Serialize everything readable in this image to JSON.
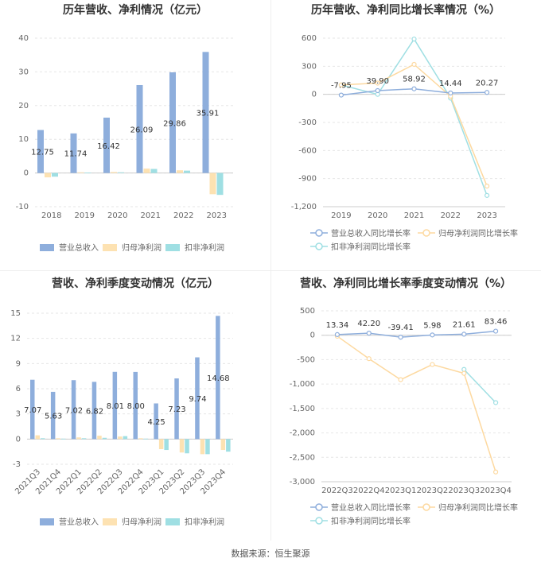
{
  "colors": {
    "revenue": "#8eaedc",
    "net_profit": "#fde2b2",
    "deducted_profit": "#9fdfe3",
    "axis": "#cccccc",
    "grid": "#e6e6e6"
  },
  "chart_data": [
    {
      "type": "bar",
      "title": "历年营收、净利情况（亿元）",
      "categories": [
        "2018",
        "2019",
        "2020",
        "2021",
        "2022",
        "2023"
      ],
      "ylim": [
        -10,
        40
      ],
      "yticks": [
        -10,
        0,
        10,
        20,
        30,
        40
      ],
      "series": [
        {
          "name": "营业总收入",
          "values": [
            12.75,
            11.74,
            16.42,
            26.09,
            29.86,
            35.91
          ],
          "labels": [
            "12.75",
            "11.74",
            "16.42",
            "26.09",
            "29.86",
            "35.91"
          ]
        },
        {
          "name": "归母净利润",
          "values": [
            -1.3,
            0.2,
            0.3,
            1.3,
            0.8,
            -6.3
          ]
        },
        {
          "name": "扣非净利润",
          "values": [
            -1.1,
            0.1,
            0.2,
            1.2,
            0.7,
            -6.5
          ]
        }
      ]
    },
    {
      "type": "line",
      "title": "历年营收、净利同比增长率情况（%）",
      "categories": [
        "2019",
        "2020",
        "2021",
        "2022",
        "2023"
      ],
      "ylim": [
        -1200,
        600
      ],
      "yticks": [
        -1200,
        -900,
        -600,
        -300,
        0,
        300,
        600
      ],
      "ytick_labels": [
        "-1,200",
        "-900",
        "-600",
        "-300",
        "0",
        "300",
        "600"
      ],
      "series": [
        {
          "name": "营业总收入同比增长率",
          "values": [
            -7.95,
            39.9,
            58.92,
            14.44,
            20.27
          ],
          "labels": [
            "-7.95",
            "39.90",
            "58.92",
            "14.44",
            "20.27"
          ]
        },
        {
          "name": "归母净利润同比增长率",
          "values": [
            100,
            120,
            320,
            -20,
            -980
          ]
        },
        {
          "name": "扣非净利润同比增长率",
          "values": [
            100,
            0,
            590,
            -40,
            -1080
          ]
        }
      ]
    },
    {
      "type": "bar",
      "title": "营收、净利季度变动情况（亿元）",
      "categories": [
        "2021Q3",
        "2021Q4",
        "2022Q1",
        "2022Q2",
        "2022Q3",
        "2022Q4",
        "2023Q1",
        "2023Q2",
        "2023Q3",
        "2023Q4"
      ],
      "ylim": [
        -3,
        15
      ],
      "yticks": [
        -3,
        0,
        3,
        6,
        9,
        12,
        15
      ],
      "series": [
        {
          "name": "营业总收入",
          "values": [
            7.07,
            5.63,
            7.02,
            6.82,
            8.01,
            8.0,
            4.25,
            7.23,
            9.74,
            14.68
          ],
          "labels": [
            "7.07",
            "5.63",
            "7.02",
            "6.82",
            "8.01",
            "8.00",
            "4.25",
            "7.23",
            "9.74",
            "14.68"
          ]
        },
        {
          "name": "归母净利润",
          "values": [
            0.45,
            0.1,
            0.2,
            0.4,
            0.3,
            0.1,
            -1.2,
            -1.6,
            -1.8,
            -1.3
          ]
        },
        {
          "name": "扣非净利润",
          "values": [
            0.1,
            0.05,
            0.1,
            0.15,
            0.35,
            0.05,
            -1.3,
            -1.7,
            -1.8,
            -1.5
          ]
        }
      ]
    },
    {
      "type": "line",
      "title": "营收、净利同比增长率季度变动情况（%）",
      "categories": [
        "2022Q3",
        "2022Q4",
        "2023Q1",
        "2023Q2",
        "2023Q3",
        "2023Q4"
      ],
      "ylim": [
        -3000,
        500
      ],
      "yticks": [
        -3000,
        -2500,
        -2000,
        -1500,
        -1000,
        -500,
        0,
        500
      ],
      "ytick_labels": [
        "-3,000",
        "-2,500",
        "-2,000",
        "-1,500",
        "-1,000",
        "-500",
        "0",
        "500"
      ],
      "series": [
        {
          "name": "营业总收入同比增长率",
          "values": [
            13.34,
            42.2,
            -39.41,
            5.98,
            21.61,
            83.46
          ],
          "labels": [
            "13.34",
            "42.20",
            "-39.41",
            "5.98",
            "21.61",
            "83.46"
          ]
        },
        {
          "name": "归母净利润同比增长率",
          "values": [
            -20,
            -480,
            -910,
            -600,
            -780,
            -2800
          ]
        },
        {
          "name": "扣非净利润同比增长率",
          "values": [
            null,
            null,
            null,
            null,
            -700,
            -1380
          ]
        }
      ]
    }
  ],
  "source": "数据来源：恒生聚源"
}
